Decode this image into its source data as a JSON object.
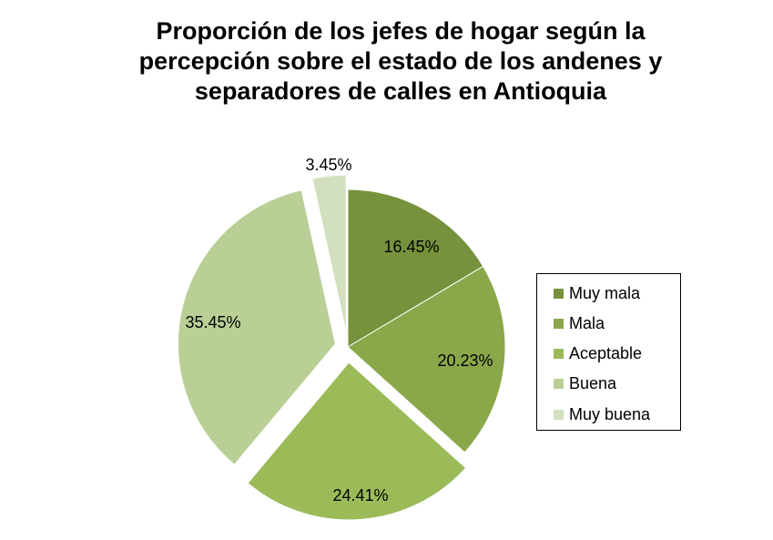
{
  "chart_data": {
    "type": "pie",
    "title_lines": [
      "Proporción de los jefes de  hogar según la",
      "percepción sobre el estado de los andenes y",
      "separadores de calles en Antioquia"
    ],
    "categories": [
      "Muy mala",
      "Mala",
      "Aceptable",
      "Buena",
      "Muy buena"
    ],
    "values": [
      16.45,
      20.23,
      24.41,
      35.45,
      3.45
    ],
    "labels": [
      "16.45%",
      "20.23%",
      "24.41%",
      "35.45%",
      "3.45%"
    ],
    "colors": [
      "#76923C",
      "#8AA84A",
      "#9BBB59",
      "#B9CF96",
      "#D3E0BF"
    ],
    "legend_position": "right"
  }
}
